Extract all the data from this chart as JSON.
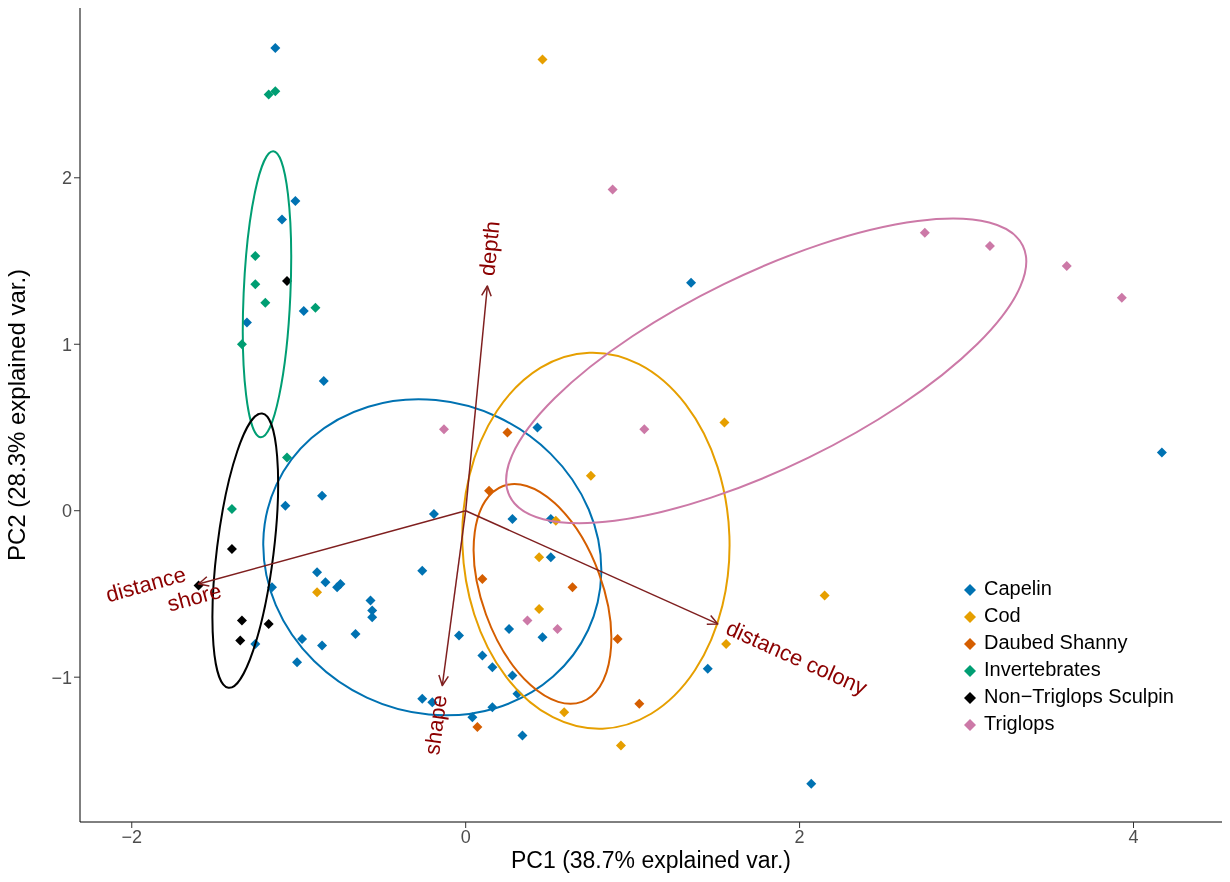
{
  "chart_data": {
    "type": "scatter",
    "xlabel": "PC1 (38.7% explained var.)",
    "ylabel": "PC2 (28.3% explained var.)",
    "xlim": [
      -2.31,
      4.53
    ],
    "ylim": [
      -1.87,
      3.02
    ],
    "xticks": [
      {
        "value": -2,
        "label": "−2"
      },
      0,
      2,
      4
    ],
    "yticks": [
      {
        "value": -1,
        "label": "−1"
      },
      0,
      1,
      2
    ],
    "marker": "diamond",
    "legend": "bottom right",
    "series": [
      {
        "name": "Capelin",
        "color": "#0072b2",
        "x": [
          -1.14,
          -1.02,
          -1.1,
          -1.31,
          -0.97,
          -0.85,
          -0.86,
          -1.08,
          -0.19,
          -0.26,
          -0.89,
          -0.84,
          -0.77,
          -0.75,
          -1.16,
          -0.57,
          -0.56,
          -0.56,
          -0.66,
          -0.04,
          -0.98,
          -0.86,
          -1.26,
          -1.01,
          -0.26,
          -0.2,
          0.04,
          0.43,
          0.28,
          0.51,
          0.51,
          0.26,
          0.46,
          0.1,
          0.16,
          0.28,
          0.31,
          0.16,
          0.34,
          1.45,
          1.35,
          4.17,
          2.07
        ],
        "values": [
          2.78,
          1.86,
          1.75,
          1.13,
          1.2,
          0.78,
          0.09,
          0.03,
          -0.02,
          -0.36,
          -0.37,
          -0.43,
          -0.46,
          -0.44,
          -0.46,
          -0.54,
          -0.6,
          -0.64,
          -0.74,
          -0.75,
          -0.77,
          -0.81,
          -0.8,
          -0.91,
          -1.13,
          -1.15,
          -1.24,
          0.5,
          -0.05,
          -0.05,
          -0.28,
          -0.71,
          -0.76,
          -0.87,
          -0.94,
          -0.99,
          -1.1,
          -1.18,
          -1.35,
          -0.95,
          1.37,
          0.35,
          -1.64
        ]
      },
      {
        "name": "Cod",
        "color": "#e69f00",
        "x": [
          0.46,
          -0.89,
          1.55,
          0.75,
          0.54,
          0.44,
          0.44,
          1.56,
          2.15,
          0.59,
          0.93
        ],
        "values": [
          2.71,
          -0.49,
          0.53,
          0.21,
          -0.06,
          -0.28,
          -0.59,
          -0.8,
          -0.51,
          -1.21,
          -1.41
        ]
      },
      {
        "name": "Daubed Shanny",
        "color": "#d55e00",
        "x": [
          0.25,
          0.14,
          0.1,
          0.64,
          0.91,
          1.04,
          0.07
        ],
        "values": [
          0.47,
          0.12,
          -0.41,
          -0.46,
          -0.77,
          -1.16,
          -1.3
        ]
      },
      {
        "name": "Invertebrates",
        "color": "#009e73",
        "x": [
          -1.18,
          -1.14,
          -1.26,
          -1.26,
          -1.2,
          -0.9,
          -1.34,
          -1.07,
          -1.4
        ],
        "values": [
          2.5,
          2.52,
          1.53,
          1.36,
          1.25,
          1.22,
          1.0,
          0.32,
          0.01
        ]
      },
      {
        "name": "Non−Triglops Sculpin",
        "color": "#000000",
        "x": [
          -1.07,
          -1.4,
          -1.6,
          -1.34,
          -1.18,
          -1.35
        ],
        "values": [
          1.38,
          -0.23,
          -0.45,
          -0.66,
          -0.68,
          -0.78
        ]
      },
      {
        "name": "Triglops",
        "color": "#cc79a7",
        "x": [
          0.88,
          2.75,
          3.14,
          3.6,
          3.93,
          1.07,
          -0.13,
          0.37,
          0.55
        ],
        "values": [
          1.93,
          1.67,
          1.59,
          1.47,
          1.28,
          0.49,
          0.49,
          -0.66,
          -0.71
        ]
      }
    ],
    "annotations": [
      "depth",
      "shape",
      "distance\nshore",
      "distance colony"
    ]
  }
}
